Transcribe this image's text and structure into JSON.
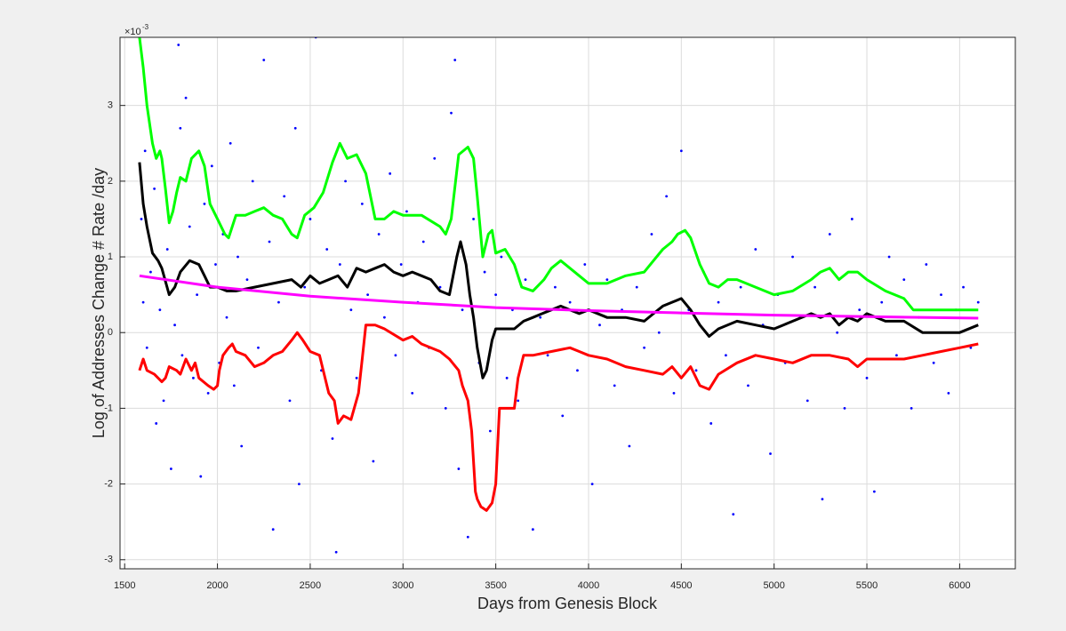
{
  "chart_data": {
    "type": "scatter",
    "x_label": "Days from Genesis Block",
    "y_label": "Log of Addresses Change # Rate /day",
    "y_exponent": {
      "base": "×10",
      "power": "-3"
    },
    "xlim": [
      1475,
      6300
    ],
    "ylim": [
      -3.12,
      3.9
    ],
    "xticks": [
      1500,
      2000,
      2500,
      3000,
      3500,
      4000,
      4500,
      5000,
      5500,
      6000
    ],
    "yticks": [
      -3,
      -2,
      -1,
      0,
      1,
      2,
      3
    ],
    "grid": true,
    "series": [
      {
        "color": "#0000ff",
        "style": "markers",
        "x": [
          1590,
          1600,
          1610,
          1620,
          1640,
          1660,
          1670,
          1690,
          1710,
          1730,
          1750,
          1770,
          1790,
          1800,
          1810,
          1830,
          1850,
          1870,
          1890,
          1910,
          1930,
          1950,
          1970,
          1990,
          2010,
          2030,
          2050,
          2070,
          2090,
          2110,
          2130,
          2160,
          2190,
          2220,
          2250,
          2280,
          2300,
          2330,
          2360,
          2390,
          2420,
          2440,
          2470,
          2500,
          2530,
          2560,
          2590,
          2620,
          2640,
          2660,
          2690,
          2720,
          2750,
          2780,
          2810,
          2840,
          2870,
          2900,
          2930,
          2960,
          2990,
          3020,
          3050,
          3080,
          3110,
          3140,
          3170,
          3200,
          3230,
          3260,
          3280,
          3300,
          3320,
          3350,
          3380,
          3410,
          3440,
          3470,
          3500,
          3530,
          3560,
          3590,
          3620,
          3660,
          3700,
          3740,
          3780,
          3820,
          3860,
          3900,
          3940,
          3980,
          4020,
          4060,
          4100,
          4140,
          4180,
          4220,
          4260,
          4300,
          4340,
          4380,
          4420,
          4460,
          4500,
          4540,
          4580,
          4620,
          4660,
          4700,
          4740,
          4780,
          4820,
          4860,
          4900,
          4940,
          4980,
          5020,
          5060,
          5100,
          5140,
          5180,
          5220,
          5260,
          5300,
          5340,
          5380,
          5420,
          5460,
          5500,
          5540,
          5580,
          5620,
          5660,
          5700,
          5740,
          5780,
          5820,
          5860,
          5900,
          5940,
          5980,
          6020,
          6060,
          6100
        ],
        "values": [
          1.5,
          0.4,
          2.4,
          -0.2,
          0.8,
          1.9,
          -1.2,
          0.3,
          -0.9,
          1.1,
          -1.8,
          0.1,
          3.8,
          2.7,
          -0.3,
          3.1,
          1.4,
          -0.6,
          0.5,
          -1.9,
          1.7,
          -0.8,
          2.2,
          0.9,
          -0.4,
          1.3,
          0.2,
          2.5,
          -0.7,
          1.0,
          -1.5,
          0.7,
          2.0,
          -0.2,
          3.6,
          1.2,
          -2.6,
          0.4,
          1.8,
          -0.9,
          2.7,
          -2.0,
          0.6,
          1.5,
          3.9,
          -0.5,
          1.1,
          -1.4,
          -2.9,
          0.9,
          2.0,
          0.3,
          -0.6,
          1.7,
          0.5,
          -1.7,
          1.3,
          0.2,
          2.1,
          -0.3,
          0.9,
          1.6,
          -0.8,
          0.4,
          1.2,
          -0.2,
          2.3,
          0.6,
          -1.0,
          2.9,
          3.6,
          -1.8,
          0.3,
          -2.7,
          1.5,
          -0.4,
          0.8,
          -1.3,
          0.5,
          1.0,
          -0.6,
          0.3,
          -0.9,
          0.7,
          -2.6,
          0.2,
          -0.3,
          0.6,
          -1.1,
          0.4,
          -0.5,
          0.9,
          -2.0,
          0.1,
          0.7,
          -0.7,
          0.3,
          -1.5,
          0.6,
          -0.2,
          1.3,
          0.0,
          1.8,
          -0.8,
          2.4,
          0.3,
          -0.5,
          0.8,
          -1.2,
          0.4,
          -0.3,
          -2.4,
          0.6,
          -0.7,
          1.1,
          0.1,
          -1.6,
          0.5,
          -0.4,
          1.0,
          0.2,
          -0.9,
          0.6,
          -2.2,
          1.3,
          0.0,
          -1.0,
          1.5,
          0.3,
          -0.6,
          -2.1,
          0.4,
          1.0,
          -0.3,
          0.7,
          -1.0,
          0.2,
          0.9,
          -0.4,
          0.5,
          -0.8,
          0.3,
          0.6,
          -0.2,
          0.4
        ]
      },
      {
        "color": "#00ff00",
        "style": "line",
        "x": [
          1580,
          1600,
          1620,
          1650,
          1670,
          1690,
          1700,
          1720,
          1740,
          1760,
          1780,
          1800,
          1830,
          1860,
          1900,
          1930,
          1960,
          2000,
          2040,
          2060,
          2100,
          2150,
          2200,
          2250,
          2300,
          2350,
          2400,
          2430,
          2470,
          2520,
          2570,
          2620,
          2660,
          2700,
          2750,
          2800,
          2850,
          2900,
          2950,
          3000,
          3100,
          3200,
          3230,
          3260,
          3300,
          3350,
          3380,
          3400,
          3430,
          3460,
          3480,
          3500,
          3550,
          3600,
          3640,
          3700,
          3760,
          3800,
          3850,
          3900,
          3950,
          4000,
          4100,
          4200,
          4300,
          4350,
          4400,
          4450,
          4480,
          4520,
          4550,
          4600,
          4650,
          4700,
          4750,
          4800,
          4900,
          5000,
          5100,
          5200,
          5250,
          5300,
          5350,
          5400,
          5450,
          5500,
          5600,
          5700,
          5750,
          5800,
          5900,
          6000,
          6100
        ],
        "values": [
          3.9,
          3.5,
          3.0,
          2.5,
          2.3,
          2.4,
          2.3,
          1.9,
          1.45,
          1.6,
          1.85,
          2.05,
          2.0,
          2.3,
          2.4,
          2.2,
          1.7,
          1.5,
          1.3,
          1.25,
          1.55,
          1.55,
          1.6,
          1.65,
          1.55,
          1.5,
          1.3,
          1.25,
          1.55,
          1.65,
          1.85,
          2.25,
          2.5,
          2.3,
          2.35,
          2.1,
          1.5,
          1.5,
          1.6,
          1.55,
          1.55,
          1.4,
          1.3,
          1.5,
          2.35,
          2.45,
          2.3,
          1.8,
          1.0,
          1.3,
          1.35,
          1.05,
          1.1,
          0.9,
          0.6,
          0.55,
          0.7,
          0.85,
          0.95,
          0.85,
          0.75,
          0.65,
          0.65,
          0.75,
          0.8,
          0.95,
          1.1,
          1.2,
          1.3,
          1.35,
          1.25,
          0.9,
          0.65,
          0.6,
          0.7,
          0.7,
          0.6,
          0.5,
          0.55,
          0.7,
          0.8,
          0.85,
          0.7,
          0.8,
          0.8,
          0.7,
          0.55,
          0.45,
          0.3,
          0.3,
          0.3,
          0.3,
          0.3
        ]
      },
      {
        "color": "#000000",
        "style": "line",
        "x": [
          1580,
          1600,
          1620,
          1650,
          1680,
          1700,
          1740,
          1770,
          1800,
          1850,
          1900,
          1930,
          1960,
          2000,
          2050,
          2100,
          2200,
          2300,
          2400,
          2450,
          2500,
          2550,
          2600,
          2650,
          2700,
          2750,
          2800,
          2850,
          2900,
          2950,
          3000,
          3050,
          3100,
          3150,
          3200,
          3250,
          3290,
          3310,
          3340,
          3360,
          3380,
          3400,
          3430,
          3450,
          3480,
          3500,
          3550,
          3600,
          3650,
          3700,
          3750,
          3800,
          3850,
          3900,
          3950,
          4000,
          4100,
          4200,
          4300,
          4350,
          4400,
          4450,
          4500,
          4550,
          4600,
          4650,
          4700,
          4800,
          4900,
          5000,
          5050,
          5100,
          5200,
          5250,
          5300,
          5350,
          5400,
          5450,
          5500,
          5600,
          5700,
          5800,
          5900,
          6000,
          6100
        ],
        "values": [
          2.25,
          1.7,
          1.4,
          1.05,
          0.95,
          0.85,
          0.5,
          0.6,
          0.8,
          0.95,
          0.9,
          0.75,
          0.6,
          0.6,
          0.55,
          0.55,
          0.6,
          0.65,
          0.7,
          0.6,
          0.75,
          0.65,
          0.7,
          0.75,
          0.6,
          0.85,
          0.8,
          0.85,
          0.9,
          0.8,
          0.75,
          0.8,
          0.75,
          0.7,
          0.55,
          0.5,
          1.0,
          1.2,
          0.9,
          0.5,
          0.2,
          -0.2,
          -0.6,
          -0.5,
          -0.1,
          0.05,
          0.05,
          0.05,
          0.15,
          0.2,
          0.25,
          0.3,
          0.35,
          0.3,
          0.25,
          0.3,
          0.2,
          0.2,
          0.15,
          0.25,
          0.35,
          0.4,
          0.45,
          0.3,
          0.1,
          -0.05,
          0.05,
          0.15,
          0.1,
          0.05,
          0.1,
          0.15,
          0.25,
          0.2,
          0.25,
          0.1,
          0.2,
          0.15,
          0.25,
          0.15,
          0.15,
          0.0,
          0.0,
          0.0,
          0.1
        ]
      },
      {
        "color": "#ff0000",
        "style": "line",
        "x": [
          1580,
          1600,
          1620,
          1660,
          1700,
          1720,
          1740,
          1780,
          1800,
          1830,
          1860,
          1880,
          1900,
          1950,
          1980,
          2000,
          2010,
          2030,
          2060,
          2080,
          2100,
          2150,
          2200,
          2250,
          2300,
          2350,
          2400,
          2430,
          2460,
          2500,
          2550,
          2600,
          2630,
          2650,
          2680,
          2720,
          2760,
          2780,
          2800,
          2850,
          2900,
          3000,
          3050,
          3100,
          3200,
          3250,
          3300,
          3320,
          3350,
          3370,
          3390,
          3400,
          3420,
          3450,
          3480,
          3500,
          3520,
          3560,
          3600,
          3620,
          3650,
          3700,
          3800,
          3900,
          3950,
          4000,
          4100,
          4200,
          4300,
          4400,
          4450,
          4500,
          4550,
          4600,
          4650,
          4700,
          4800,
          4900,
          5000,
          5100,
          5200,
          5300,
          5400,
          5450,
          5500,
          5600,
          5700,
          5800,
          5900,
          6000,
          6100
        ],
        "values": [
          -0.5,
          -0.35,
          -0.5,
          -0.55,
          -0.65,
          -0.6,
          -0.45,
          -0.5,
          -0.55,
          -0.35,
          -0.5,
          -0.4,
          -0.6,
          -0.7,
          -0.75,
          -0.7,
          -0.5,
          -0.3,
          -0.2,
          -0.15,
          -0.25,
          -0.3,
          -0.45,
          -0.4,
          -0.3,
          -0.25,
          -0.1,
          0.0,
          -0.1,
          -0.25,
          -0.3,
          -0.8,
          -0.9,
          -1.2,
          -1.1,
          -1.15,
          -0.8,
          -0.35,
          0.1,
          0.1,
          0.05,
          -0.1,
          -0.05,
          -0.15,
          -0.25,
          -0.35,
          -0.5,
          -0.7,
          -0.9,
          -1.3,
          -2.1,
          -2.2,
          -2.3,
          -2.35,
          -2.25,
          -2.0,
          -1.0,
          -1.0,
          -1.0,
          -0.6,
          -0.3,
          -0.3,
          -0.25,
          -0.2,
          -0.25,
          -0.3,
          -0.35,
          -0.45,
          -0.5,
          -0.55,
          -0.45,
          -0.6,
          -0.45,
          -0.7,
          -0.75,
          -0.55,
          -0.4,
          -0.3,
          -0.35,
          -0.4,
          -0.3,
          -0.3,
          -0.35,
          -0.45,
          -0.35,
          -0.35,
          -0.35,
          -0.3,
          -0.25,
          -0.2,
          -0.15
        ]
      },
      {
        "color": "#ff00ff",
        "style": "line",
        "x": [
          1580,
          2000,
          2500,
          3000,
          3500,
          4000,
          4500,
          5000,
          5500,
          6100
        ],
        "values": [
          0.75,
          0.6,
          0.48,
          0.4,
          0.33,
          0.29,
          0.26,
          0.23,
          0.21,
          0.19
        ]
      }
    ]
  }
}
